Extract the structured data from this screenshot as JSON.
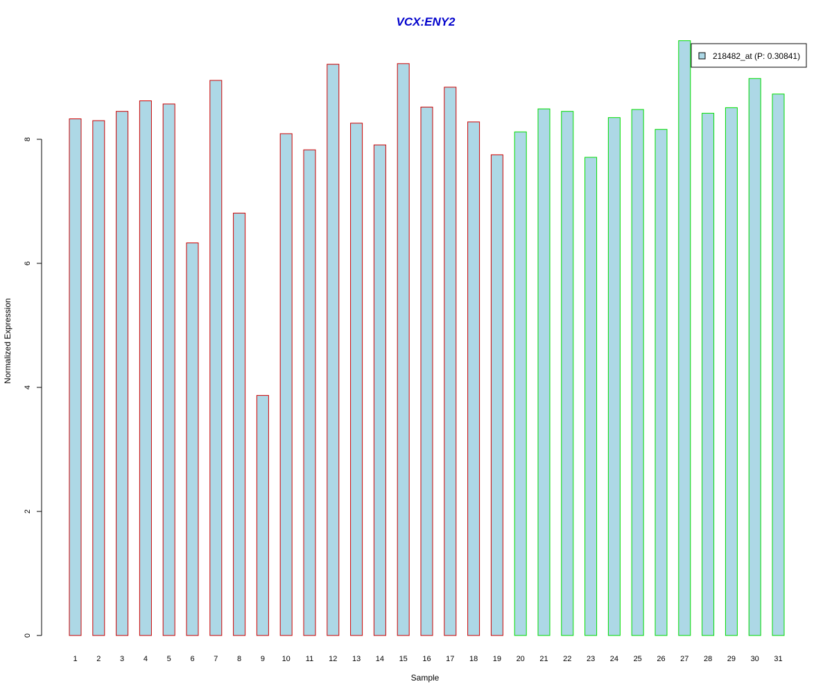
{
  "chart_data": {
    "type": "bar",
    "title": "VCX:ENY2",
    "xlabel": "Sample",
    "ylabel": "Normalized Expression",
    "categories": [
      "1",
      "2",
      "3",
      "4",
      "5",
      "6",
      "7",
      "8",
      "9",
      "10",
      "11",
      "12",
      "13",
      "14",
      "15",
      "16",
      "17",
      "18",
      "19",
      "20",
      "21",
      "22",
      "23",
      "24",
      "25",
      "26",
      "27",
      "28",
      "29",
      "30",
      "31"
    ],
    "series": [
      {
        "name": "218482_at (P: 0.30841)",
        "values": [
          8.33,
          8.3,
          8.45,
          8.62,
          8.57,
          6.33,
          8.95,
          6.81,
          3.87,
          8.09,
          7.83,
          9.21,
          8.26,
          7.91,
          9.22,
          8.52,
          8.84,
          8.28,
          7.75,
          8.12,
          8.49,
          8.45,
          7.71,
          8.35,
          8.48,
          8.16,
          9.59,
          8.42,
          8.51,
          8.98,
          8.73
        ]
      }
    ],
    "groups": [
      {
        "samples": "1-19",
        "border_color": "#cc0000"
      },
      {
        "samples": "20-31",
        "border_color": "#00dd00"
      }
    ],
    "bar_fill": "#add8e6",
    "title_color": "#0000cc",
    "yticks": [
      0,
      2,
      4,
      6,
      8
    ],
    "ylim": [
      0,
      9.59
    ],
    "grid": false,
    "legend_position": "top-right"
  }
}
